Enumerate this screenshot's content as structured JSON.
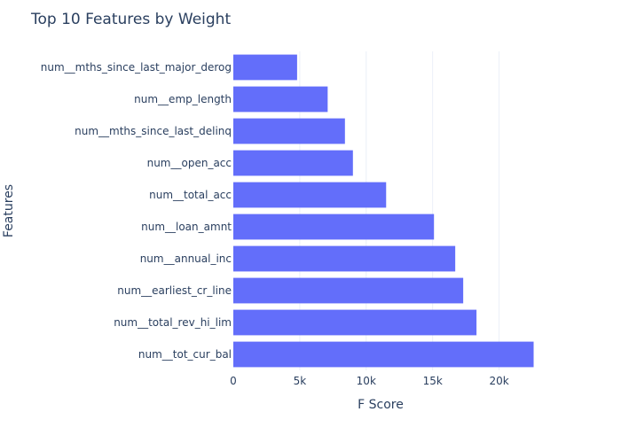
{
  "chart_data": {
    "type": "bar",
    "orientation": "horizontal",
    "title": "Top 10 Features by Weight",
    "xlabel": "F Score",
    "ylabel": "Features",
    "categories": [
      "num__mths_since_last_major_derog",
      "num__emp_length",
      "num__mths_since_last_delinq",
      "num__open_acc",
      "num__total_acc",
      "num__loan_amnt",
      "num__annual_inc",
      "num__earliest_cr_line",
      "num__total_rev_hi_lim",
      "num__tot_cur_bal"
    ],
    "values": [
      4800,
      7100,
      8400,
      9000,
      11500,
      15100,
      16700,
      17300,
      18300,
      22600
    ],
    "xlim": [
      0,
      23500
    ],
    "x_ticks": [
      0,
      5000,
      10000,
      15000,
      20000
    ],
    "x_tick_labels": [
      "0",
      "5k",
      "10k",
      "15k",
      "20k"
    ],
    "grid": true,
    "colors": {
      "bar": "#636efa",
      "text": "#2a3f5f",
      "grid": "#ebf0f8"
    }
  }
}
